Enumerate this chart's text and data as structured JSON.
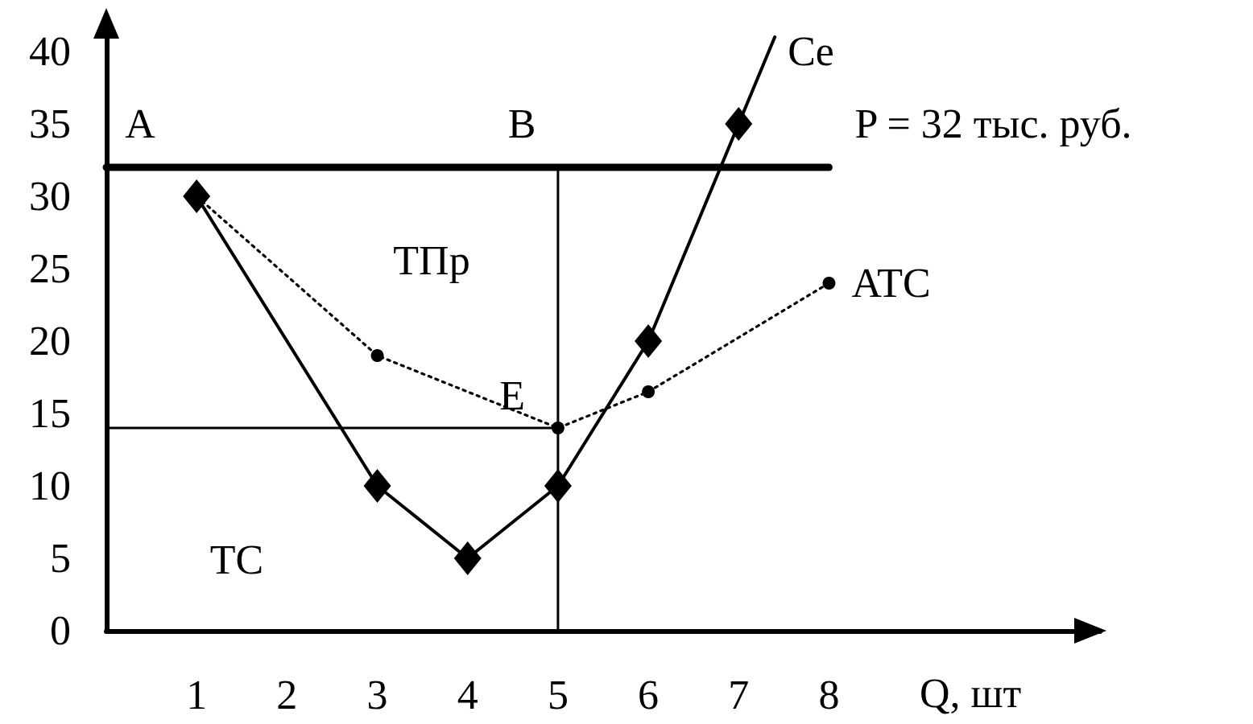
{
  "chart_data": {
    "type": "line",
    "xlabel": "Q, шт",
    "xlim": [
      0,
      11
    ],
    "xticks": [
      1,
      2,
      3,
      4,
      5,
      6,
      7,
      8
    ],
    "ylim": [
      0,
      41
    ],
    "yticks": [
      0,
      5,
      10,
      15,
      20,
      25,
      30,
      35,
      40
    ],
    "series": [
      {
        "color": "#000000",
        "x": [
          1,
          3,
          4,
          5,
          6,
          7
        ],
        "values": [
          30,
          10,
          5,
          10,
          20,
          35
        ],
        "marker": "diamond",
        "line_style": "solid"
      },
      {
        "name": "Ce",
        "color": "#000000",
        "x": [
          7,
          7.4
        ],
        "values": [
          35,
          41
        ],
        "marker": "none",
        "line_style": "solid"
      },
      {
        "name": "ATC",
        "color": "#000000",
        "x": [
          1,
          3,
          5,
          6,
          8
        ],
        "values": [
          30,
          19,
          14,
          16.5,
          24
        ],
        "marker": "circle",
        "line_style": "dotted"
      },
      {
        "name": "P = 32 тыс. руб.",
        "color": "#000000",
        "x": [
          0,
          8
        ],
        "values": [
          32,
          32
        ],
        "marker": "none",
        "line_style": "solid"
      },
      {
        "color": "#000000",
        "x": [
          5,
          5
        ],
        "values": [
          0,
          32
        ],
        "marker": "none",
        "line_style": "solid"
      },
      {
        "color": "#000000",
        "x": [
          0,
          5
        ],
        "values": [
          14,
          14
        ],
        "marker": "none",
        "line_style": "solid"
      }
    ],
    "annotations": [
      "A",
      "B",
      "ТПр",
      "E",
      "TC"
    ]
  }
}
